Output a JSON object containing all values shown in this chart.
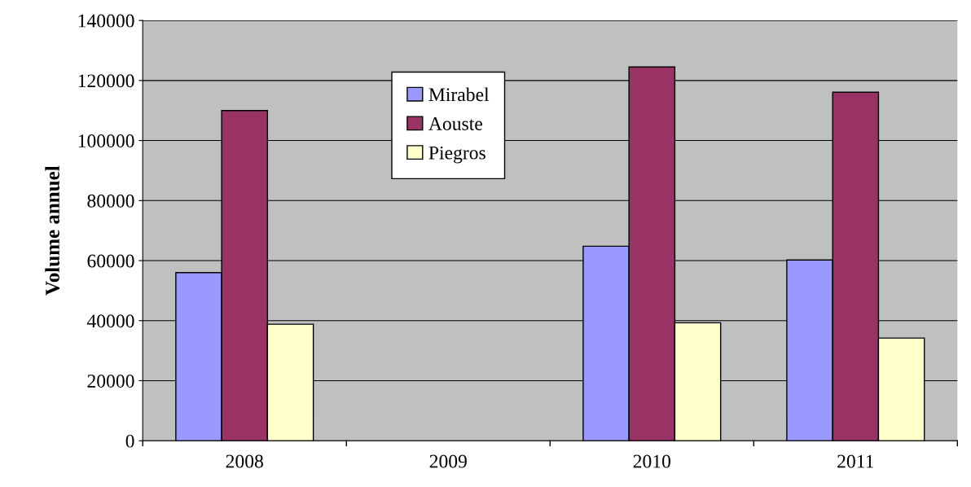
{
  "chart_data": {
    "type": "bar",
    "ylabel": "Volume annuel",
    "categories": [
      "2008",
      "2009",
      "2010",
      "2011"
    ],
    "series": [
      {
        "name": "Mirabel",
        "color": "#9999ff",
        "values": [
          56000,
          null,
          64800,
          60200
        ]
      },
      {
        "name": "Aouste",
        "color": "#993366",
        "values": [
          110000,
          null,
          124500,
          116100
        ]
      },
      {
        "name": "Piegros",
        "color": "#ffffcc",
        "values": [
          38800,
          null,
          39300,
          34200
        ]
      }
    ],
    "ylim": [
      0,
      140000
    ],
    "yticks": [
      0,
      20000,
      40000,
      60000,
      80000,
      100000,
      120000,
      140000
    ],
    "grid": "y",
    "legend": "top"
  }
}
